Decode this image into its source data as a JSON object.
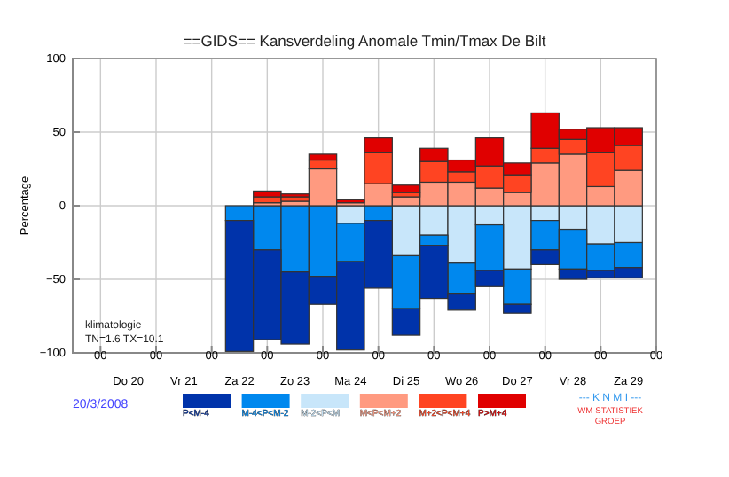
{
  "chart_data": {
    "type": "bar",
    "stacked": true,
    "title": "==GIDS== Kansverdeling Anomale Tmin/Tmax De Bilt",
    "ylabel": "Percentage",
    "x": [
      "2008-03-22T12:00",
      "2008-03-23T00:00",
      "2008-03-23T12:00",
      "2008-03-24T00:00",
      "2008-03-24T12:00",
      "2008-03-25T00:00",
      "2008-03-25T12:00",
      "2008-03-26T00:00",
      "2008-03-26T12:00",
      "2008-03-27T00:00",
      "2008-03-27T12:00",
      "2008-03-28T00:00",
      "2008-03-28T12:00",
      "2008-03-29T00:00",
      "2008-03-29T12:00"
    ],
    "series": [
      {
        "name": "M-2<P<M",
        "color": "#c8e6fa",
        "values": [
          null,
          null,
          0,
          0,
          -12,
          0,
          -34,
          -20,
          -39,
          -13,
          -43,
          -10,
          -16,
          -26,
          -25
        ]
      },
      {
        "name": "M-4<P<M-2",
        "color": "#0088ee",
        "values": [
          -10,
          -30,
          -45,
          -48,
          -26,
          -10,
          -36,
          -7,
          -21,
          -31,
          -24,
          -20,
          -27,
          -18,
          -17
        ]
      },
      {
        "name": "P<M-4",
        "color": "#0033aa",
        "values": [
          -89,
          -61,
          -49,
          -19,
          -60,
          -46,
          -18,
          -36,
          -11,
          -11,
          -6,
          -10,
          -7,
          -5,
          -7
        ]
      },
      {
        "name": "M<P<M+2",
        "color": "#ff9a80",
        "values": [
          0,
          2,
          3,
          25,
          2,
          15,
          6,
          16,
          16,
          12,
          9,
          29,
          35,
          13,
          24
        ]
      },
      {
        "name": "M+2<P<M+4",
        "color": "#ff4422",
        "values": [
          0,
          4,
          3,
          6,
          null,
          21,
          3,
          14,
          7,
          15,
          12,
          10,
          10,
          23,
          17
        ]
      },
      {
        "name": "P>M+4",
        "color": "#e00000",
        "values": [
          0,
          4,
          2,
          4,
          2,
          10,
          5,
          9,
          8,
          19,
          8,
          24,
          7,
          17,
          12
        ]
      }
    ],
    "xlim": [
      "2008-03-19T12:00",
      "2008-03-30T00:00"
    ],
    "x2lim": [
      "2008-03-19T12:00",
      "2008-03-30T00:00"
    ],
    "x2ticks": [
      {
        "value": "2008-03-20T00:00",
        "label": "00"
      },
      {
        "value": "2008-03-21T00:00",
        "label": "00"
      },
      {
        "value": "2008-03-22T00:00",
        "label": "00"
      },
      {
        "value": "2008-03-23T00:00",
        "label": "00"
      },
      {
        "value": "2008-03-24T00:00",
        "label": "00"
      },
      {
        "value": "2008-03-25T00:00",
        "label": "00"
      },
      {
        "value": "2008-03-26T00:00",
        "label": "00"
      },
      {
        "value": "2008-03-27T00:00",
        "label": "00"
      },
      {
        "value": "2008-03-28T00:00",
        "label": "00"
      },
      {
        "value": "2008-03-29T00:00",
        "label": "00"
      },
      {
        "value": "2008-03-30T00:00",
        "label": "00"
      }
    ],
    "xticks": [
      {
        "value": "2008-03-20T12:00",
        "label": "Do 20"
      },
      {
        "value": "2008-03-21T12:00",
        "label": "Vr 21"
      },
      {
        "value": "2008-03-22T12:00",
        "label": "Za 22"
      },
      {
        "value": "2008-03-23T12:00",
        "label": "Zo 23"
      },
      {
        "value": "2008-03-24T12:00",
        "label": "Ma 24"
      },
      {
        "value": "2008-03-25T12:00",
        "label": "Di 25"
      },
      {
        "value": "2008-03-26T12:00",
        "label": "Wo 26"
      },
      {
        "value": "2008-03-27T12:00",
        "label": "Do 27"
      },
      {
        "value": "2008-03-28T12:00",
        "label": "Vr 28"
      },
      {
        "value": "2008-03-29T12:00",
        "label": "Za 29"
      }
    ],
    "ylim": [
      -100,
      100
    ],
    "yticks": [
      -100,
      -50,
      0,
      50,
      100
    ],
    "grid": true,
    "legend": "bottom",
    "annotations": [
      "klimatologie",
      "TN=1.6  TX=10.1",
      "20/3/2008",
      "--- K N M I ---",
      "WM-STATISTIEK",
      "GROEP"
    ]
  }
}
